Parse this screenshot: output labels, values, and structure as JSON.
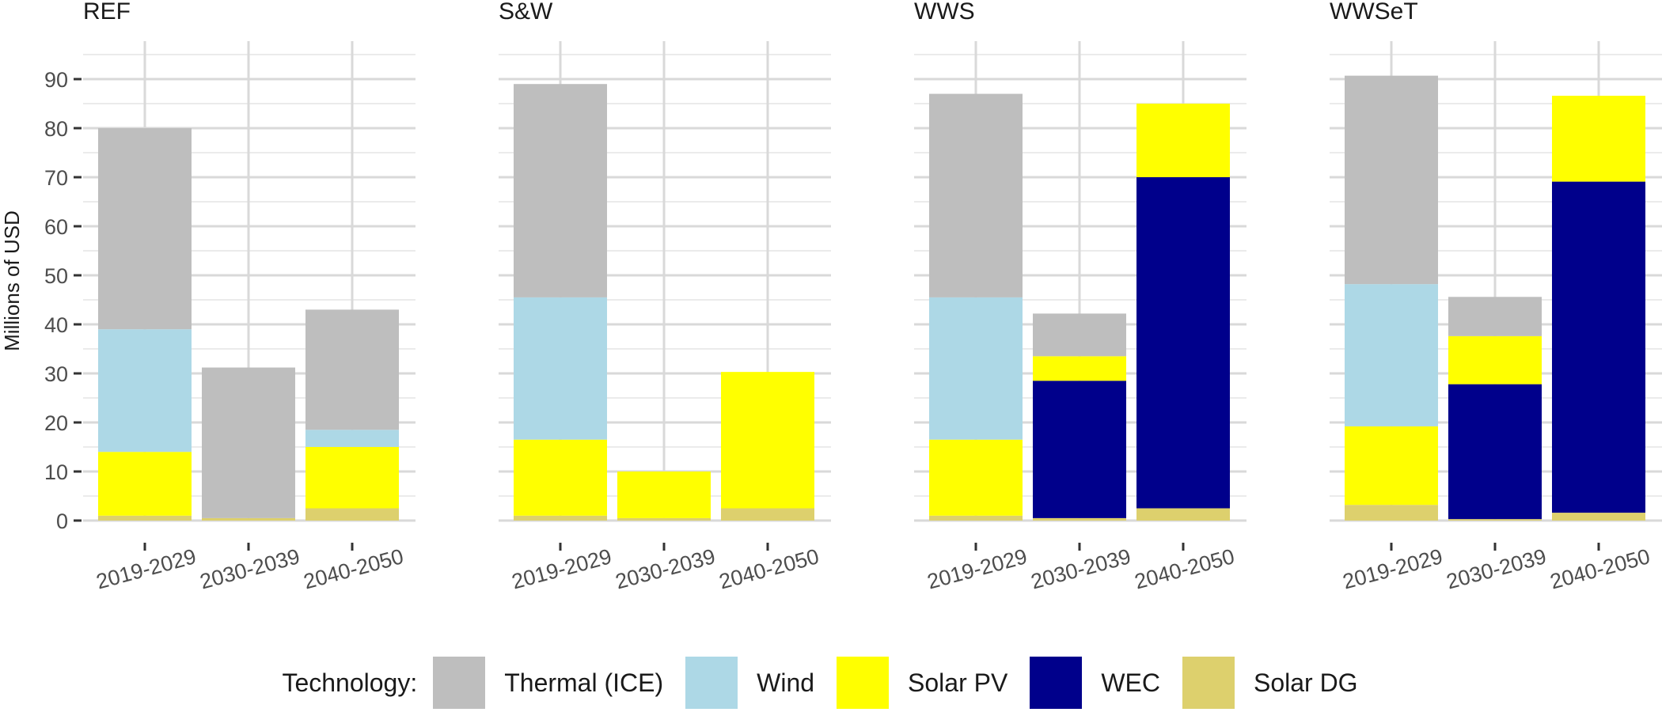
{
  "chart_data": {
    "type": "bar",
    "stacked": true,
    "ylabel": "Millions of USD",
    "ylim": [
      0,
      95
    ],
    "yticks": [
      0,
      10,
      20,
      30,
      40,
      50,
      60,
      70,
      80,
      90
    ],
    "categories": [
      "2019-2029",
      "2030-2039",
      "2040-2050"
    ],
    "grid": true,
    "legend_placement": "bottom",
    "legend_title": "Technology:",
    "technologies": [
      {
        "name": "Thermal (ICE)",
        "color": "#bebebe"
      },
      {
        "name": "Wind",
        "color": "#add8e6"
      },
      {
        "name": "Solar PV",
        "color": "#ffff00"
      },
      {
        "name": "WEC",
        "color": "#00008b"
      },
      {
        "name": "Solar DG",
        "color": "#ddd06d"
      }
    ],
    "panels": [
      {
        "title": "REF",
        "series": [
          {
            "name": "Solar DG",
            "values": [
              1,
              0.5,
              2.5
            ]
          },
          {
            "name": "WEC",
            "values": [
              0,
              0,
              0
            ]
          },
          {
            "name": "Solar PV",
            "values": [
              13,
              0,
              12.5
            ]
          },
          {
            "name": "Wind",
            "values": [
              25,
              0,
              3.5
            ]
          },
          {
            "name": "Thermal (ICE)",
            "values": [
              41,
              30.7,
              24.5
            ]
          }
        ]
      },
      {
        "title": "S&W",
        "series": [
          {
            "name": "Solar DG",
            "values": [
              1,
              0.5,
              2.5
            ]
          },
          {
            "name": "WEC",
            "values": [
              0,
              0,
              0
            ]
          },
          {
            "name": "Solar PV",
            "values": [
              15.5,
              9.5,
              27.8
            ]
          },
          {
            "name": "Wind",
            "values": [
              29,
              0,
              0
            ]
          },
          {
            "name": "Thermal (ICE)",
            "values": [
              43.5,
              0,
              0
            ]
          }
        ]
      },
      {
        "title": "WWS",
        "series": [
          {
            "name": "Solar DG",
            "values": [
              1,
              0.5,
              2.5
            ]
          },
          {
            "name": "WEC",
            "values": [
              0,
              28,
              67.5
            ]
          },
          {
            "name": "Solar PV",
            "values": [
              15.5,
              5,
              15
            ]
          },
          {
            "name": "Wind",
            "values": [
              29,
              0,
              0
            ]
          },
          {
            "name": "Thermal (ICE)",
            "values": [
              41.5,
              8.7,
              0
            ]
          }
        ]
      },
      {
        "title": "WWSeT",
        "series": [
          {
            "name": "Solar DG",
            "values": [
              3.2,
              0.3,
              1.6
            ]
          },
          {
            "name": "WEC",
            "values": [
              0,
              27.5,
              67.5
            ]
          },
          {
            "name": "Solar PV",
            "values": [
              16,
              9.8,
              17.5
            ]
          },
          {
            "name": "Wind",
            "values": [
              29,
              0,
              0
            ]
          },
          {
            "name": "Thermal (ICE)",
            "values": [
              42.5,
              8,
              0
            ]
          }
        ]
      }
    ]
  }
}
